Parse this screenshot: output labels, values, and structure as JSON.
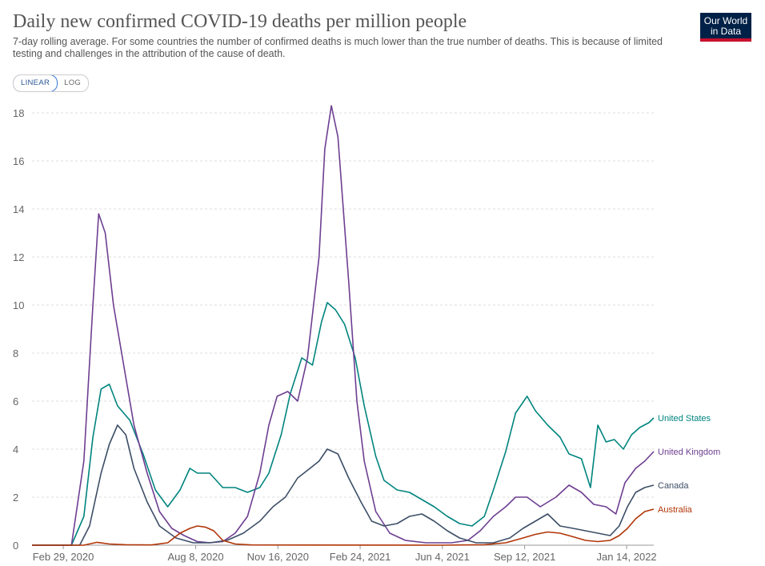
{
  "header": {
    "title": "Daily new confirmed COVID-19 deaths per million people",
    "subtitle": "7-day rolling average. For some countries the number of confirmed deaths is much lower than the true number of deaths. This is because of limited testing and challenges in the attribution of the cause of death.",
    "logo_line1": "Our World",
    "logo_line2": "in Data"
  },
  "controls": {
    "linear_label": "LINEAR",
    "log_label": "LOG",
    "selected": "LINEAR"
  },
  "chart_data": {
    "type": "line",
    "ylim": [
      0,
      18
    ],
    "y_ticks": [
      0,
      2,
      4,
      6,
      8,
      10,
      12,
      14,
      16,
      18
    ],
    "x_start": "2020-01-22",
    "x_end": "2022-02-16",
    "x_tick_labels": [
      {
        "date": "2020-02-29",
        "label": "Feb 29, 2020"
      },
      {
        "date": "2020-08-08",
        "label": "Aug 8, 2020"
      },
      {
        "date": "2020-11-16",
        "label": "Nov 16, 2020"
      },
      {
        "date": "2021-02-24",
        "label": "Feb 24, 2021"
      },
      {
        "date": "2021-06-04",
        "label": "Jun 4, 2021"
      },
      {
        "date": "2021-09-12",
        "label": "Sep 12, 2021"
      },
      {
        "date": "2022-01-14",
        "label": "Jan 14, 2022"
      }
    ],
    "grid": "horizontal-dashed",
    "series": [
      {
        "name": "United States",
        "color": "#00847e",
        "points": [
          [
            "2020-01-22",
            0
          ],
          [
            "2020-03-10",
            0
          ],
          [
            "2020-03-25",
            1.2
          ],
          [
            "2020-04-05",
            4.5
          ],
          [
            "2020-04-15",
            6.5
          ],
          [
            "2020-04-25",
            6.7
          ],
          [
            "2020-05-05",
            5.8
          ],
          [
            "2020-05-20",
            5.2
          ],
          [
            "2020-06-05",
            3.8
          ],
          [
            "2020-06-20",
            2.3
          ],
          [
            "2020-07-05",
            1.6
          ],
          [
            "2020-07-20",
            2.3
          ],
          [
            "2020-08-01",
            3.2
          ],
          [
            "2020-08-10",
            3.0
          ],
          [
            "2020-08-25",
            3.0
          ],
          [
            "2020-09-10",
            2.4
          ],
          [
            "2020-09-25",
            2.4
          ],
          [
            "2020-10-10",
            2.2
          ],
          [
            "2020-10-25",
            2.4
          ],
          [
            "2020-11-05",
            3.0
          ],
          [
            "2020-11-20",
            4.6
          ],
          [
            "2020-12-01",
            6.3
          ],
          [
            "2020-12-15",
            7.8
          ],
          [
            "2020-12-28",
            7.5
          ],
          [
            "2021-01-08",
            9.3
          ],
          [
            "2021-01-15",
            10.1
          ],
          [
            "2021-01-25",
            9.8
          ],
          [
            "2021-02-05",
            9.2
          ],
          [
            "2021-02-18",
            7.8
          ],
          [
            "2021-03-01",
            5.8
          ],
          [
            "2021-03-15",
            3.7
          ],
          [
            "2021-03-25",
            2.7
          ],
          [
            "2021-04-10",
            2.3
          ],
          [
            "2021-04-25",
            2.2
          ],
          [
            "2021-05-10",
            1.9
          ],
          [
            "2021-05-25",
            1.6
          ],
          [
            "2021-06-10",
            1.2
          ],
          [
            "2021-06-25",
            0.9
          ],
          [
            "2021-07-10",
            0.8
          ],
          [
            "2021-07-25",
            1.2
          ],
          [
            "2021-08-05",
            2.3
          ],
          [
            "2021-08-20",
            3.9
          ],
          [
            "2021-09-01",
            5.5
          ],
          [
            "2021-09-15",
            6.2
          ],
          [
            "2021-09-25",
            5.6
          ],
          [
            "2021-10-10",
            5.0
          ],
          [
            "2021-10-25",
            4.5
          ],
          [
            "2021-11-05",
            3.8
          ],
          [
            "2021-11-20",
            3.6
          ],
          [
            "2021-12-01",
            2.4
          ],
          [
            "2021-12-10",
            5.0
          ],
          [
            "2021-12-20",
            4.3
          ],
          [
            "2021-12-30",
            4.4
          ],
          [
            "2022-01-10",
            4.0
          ],
          [
            "2022-01-20",
            4.6
          ],
          [
            "2022-01-30",
            4.9
          ],
          [
            "2022-02-10",
            5.1
          ],
          [
            "2022-02-16",
            5.3
          ]
        ]
      },
      {
        "name": "United Kingdom",
        "color": "#6d3e91",
        "points": [
          [
            "2020-01-22",
            0
          ],
          [
            "2020-03-10",
            0
          ],
          [
            "2020-03-25",
            3.5
          ],
          [
            "2020-04-05",
            10.0
          ],
          [
            "2020-04-12",
            13.8
          ],
          [
            "2020-04-20",
            13.0
          ],
          [
            "2020-04-30",
            10.0
          ],
          [
            "2020-05-10",
            8.0
          ],
          [
            "2020-05-25",
            5.0
          ],
          [
            "2020-06-10",
            3.0
          ],
          [
            "2020-06-25",
            1.4
          ],
          [
            "2020-07-10",
            0.7
          ],
          [
            "2020-07-25",
            0.4
          ],
          [
            "2020-08-10",
            0.15
          ],
          [
            "2020-08-25",
            0.1
          ],
          [
            "2020-09-10",
            0.15
          ],
          [
            "2020-09-25",
            0.5
          ],
          [
            "2020-10-10",
            1.2
          ],
          [
            "2020-10-25",
            3.0
          ],
          [
            "2020-11-05",
            5.0
          ],
          [
            "2020-11-15",
            6.2
          ],
          [
            "2020-11-28",
            6.4
          ],
          [
            "2020-12-10",
            6.0
          ],
          [
            "2020-12-22",
            7.8
          ],
          [
            "2021-01-05",
            12.0
          ],
          [
            "2021-01-12",
            16.5
          ],
          [
            "2021-01-20",
            18.3
          ],
          [
            "2021-01-28",
            17.0
          ],
          [
            "2021-02-10",
            11.0
          ],
          [
            "2021-02-20",
            6.0
          ],
          [
            "2021-03-01",
            3.5
          ],
          [
            "2021-03-15",
            1.4
          ],
          [
            "2021-04-01",
            0.5
          ],
          [
            "2021-04-20",
            0.2
          ],
          [
            "2021-05-15",
            0.1
          ],
          [
            "2021-06-15",
            0.1
          ],
          [
            "2021-07-05",
            0.2
          ],
          [
            "2021-07-20",
            0.6
          ],
          [
            "2021-08-05",
            1.2
          ],
          [
            "2021-08-20",
            1.6
          ],
          [
            "2021-09-01",
            2.0
          ],
          [
            "2021-09-15",
            2.0
          ],
          [
            "2021-10-01",
            1.6
          ],
          [
            "2021-10-20",
            2.0
          ],
          [
            "2021-11-05",
            2.5
          ],
          [
            "2021-11-20",
            2.2
          ],
          [
            "2021-12-05",
            1.7
          ],
          [
            "2021-12-20",
            1.6
          ],
          [
            "2022-01-01",
            1.3
          ],
          [
            "2022-01-12",
            2.6
          ],
          [
            "2022-01-25",
            3.2
          ],
          [
            "2022-02-05",
            3.5
          ],
          [
            "2022-02-16",
            3.9
          ]
        ]
      },
      {
        "name": "Canada",
        "color": "#3c4e66",
        "points": [
          [
            "2020-01-22",
            0
          ],
          [
            "2020-03-20",
            0
          ],
          [
            "2020-04-01",
            0.8
          ],
          [
            "2020-04-15",
            3.0
          ],
          [
            "2020-04-25",
            4.2
          ],
          [
            "2020-05-05",
            5.0
          ],
          [
            "2020-05-15",
            4.6
          ],
          [
            "2020-05-25",
            3.2
          ],
          [
            "2020-06-10",
            1.8
          ],
          [
            "2020-06-25",
            0.8
          ],
          [
            "2020-07-15",
            0.3
          ],
          [
            "2020-08-05",
            0.1
          ],
          [
            "2020-08-25",
            0.1
          ],
          [
            "2020-09-15",
            0.2
          ],
          [
            "2020-10-05",
            0.5
          ],
          [
            "2020-10-25",
            1.0
          ],
          [
            "2020-11-10",
            1.6
          ],
          [
            "2020-11-25",
            2.0
          ],
          [
            "2020-12-10",
            2.8
          ],
          [
            "2020-12-25",
            3.2
          ],
          [
            "2021-01-05",
            3.5
          ],
          [
            "2021-01-15",
            4.0
          ],
          [
            "2021-01-28",
            3.8
          ],
          [
            "2021-02-10",
            2.8
          ],
          [
            "2021-02-25",
            1.8
          ],
          [
            "2021-03-10",
            1.0
          ],
          [
            "2021-03-25",
            0.8
          ],
          [
            "2021-04-10",
            0.9
          ],
          [
            "2021-04-25",
            1.2
          ],
          [
            "2021-05-10",
            1.3
          ],
          [
            "2021-05-25",
            1.0
          ],
          [
            "2021-06-10",
            0.6
          ],
          [
            "2021-06-25",
            0.3
          ],
          [
            "2021-07-15",
            0.1
          ],
          [
            "2021-08-05",
            0.1
          ],
          [
            "2021-08-25",
            0.3
          ],
          [
            "2021-09-10",
            0.7
          ],
          [
            "2021-09-25",
            1.0
          ],
          [
            "2021-10-10",
            1.3
          ],
          [
            "2021-10-25",
            0.8
          ],
          [
            "2021-11-10",
            0.7
          ],
          [
            "2021-11-25",
            0.6
          ],
          [
            "2021-12-10",
            0.5
          ],
          [
            "2021-12-25",
            0.4
          ],
          [
            "2022-01-05",
            0.8
          ],
          [
            "2022-01-15",
            1.6
          ],
          [
            "2022-01-25",
            2.2
          ],
          [
            "2022-02-05",
            2.4
          ],
          [
            "2022-02-16",
            2.5
          ]
        ]
      },
      {
        "name": "Australia",
        "color": "#b13507",
        "points": [
          [
            "2020-01-22",
            0
          ],
          [
            "2020-03-25",
            0
          ],
          [
            "2020-04-10",
            0.12
          ],
          [
            "2020-04-25",
            0.05
          ],
          [
            "2020-05-15",
            0.02
          ],
          [
            "2020-06-15",
            0.01
          ],
          [
            "2020-07-05",
            0.1
          ],
          [
            "2020-07-20",
            0.5
          ],
          [
            "2020-08-01",
            0.7
          ],
          [
            "2020-08-10",
            0.8
          ],
          [
            "2020-08-20",
            0.75
          ],
          [
            "2020-08-30",
            0.6
          ],
          [
            "2020-09-10",
            0.2
          ],
          [
            "2020-09-25",
            0.05
          ],
          [
            "2020-10-15",
            0.01
          ],
          [
            "2021-06-01",
            0
          ],
          [
            "2021-07-25",
            0.02
          ],
          [
            "2021-08-20",
            0.1
          ],
          [
            "2021-09-10",
            0.3
          ],
          [
            "2021-09-25",
            0.45
          ],
          [
            "2021-10-10",
            0.55
          ],
          [
            "2021-10-25",
            0.5
          ],
          [
            "2021-11-10",
            0.35
          ],
          [
            "2021-11-25",
            0.2
          ],
          [
            "2021-12-10",
            0.15
          ],
          [
            "2021-12-25",
            0.2
          ],
          [
            "2022-01-05",
            0.4
          ],
          [
            "2022-01-15",
            0.7
          ],
          [
            "2022-01-25",
            1.1
          ],
          [
            "2022-02-05",
            1.4
          ],
          [
            "2022-02-16",
            1.5
          ]
        ]
      }
    ]
  }
}
